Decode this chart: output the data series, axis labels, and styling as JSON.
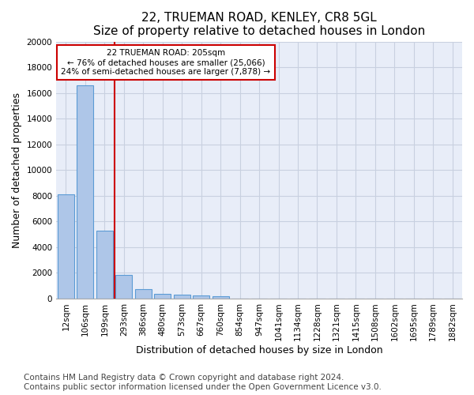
{
  "title": "22, TRUEMAN ROAD, KENLEY, CR8 5GL",
  "subtitle": "Size of property relative to detached houses in London",
  "xlabel": "Distribution of detached houses by size in London",
  "ylabel": "Number of detached properties",
  "bar_categories": [
    "12sqm",
    "106sqm",
    "199sqm",
    "293sqm",
    "386sqm",
    "480sqm",
    "573sqm",
    "667sqm",
    "760sqm",
    "854sqm",
    "947sqm",
    "1041sqm",
    "1134sqm",
    "1228sqm",
    "1321sqm",
    "1415sqm",
    "1508sqm",
    "1602sqm",
    "1695sqm",
    "1789sqm",
    "1882sqm"
  ],
  "bar_values": [
    8100,
    16600,
    5300,
    1850,
    700,
    350,
    270,
    210,
    170,
    0,
    0,
    0,
    0,
    0,
    0,
    0,
    0,
    0,
    0,
    0,
    0
  ],
  "bar_color": "#aec6e8",
  "bar_edge_color": "#5b9bd5",
  "annotation_text_line1": "22 TRUEMAN ROAD: 205sqm",
  "annotation_text_line2": "← 76% of detached houses are smaller (25,066)",
  "annotation_text_line3": "24% of semi-detached houses are larger (7,878) →",
  "annotation_box_color": "#ffffff",
  "annotation_box_edge": "#cc0000",
  "vline_color": "#cc0000",
  "vline_x_index": 2,
  "ylim": [
    0,
    20000
  ],
  "yticks": [
    0,
    2000,
    4000,
    6000,
    8000,
    10000,
    12000,
    14000,
    16000,
    18000,
    20000
  ],
  "footer_line1": "Contains HM Land Registry data © Crown copyright and database right 2024.",
  "footer_line2": "Contains public sector information licensed under the Open Government Licence v3.0.",
  "bg_color": "#e8edf8",
  "grid_color": "#c8d0e0",
  "title_fontsize": 11,
  "axis_label_fontsize": 9,
  "tick_fontsize": 7.5,
  "footer_fontsize": 7.5
}
